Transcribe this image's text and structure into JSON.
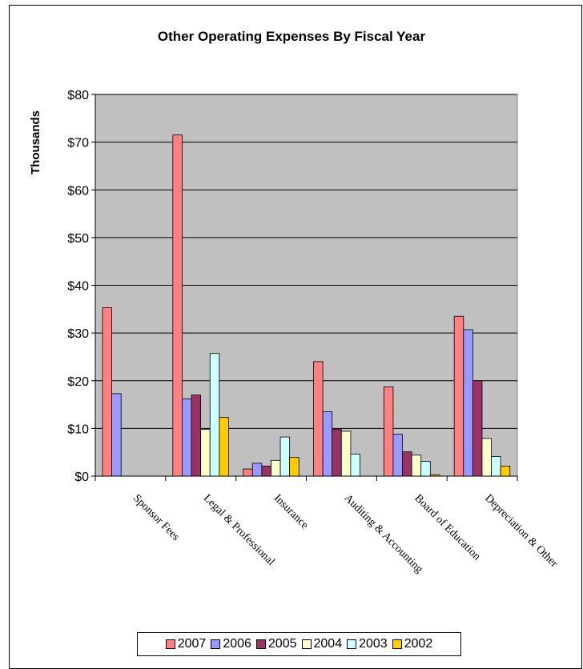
{
  "chart_data": {
    "type": "bar",
    "title": "Other Operating Expenses By Fiscal Year",
    "ylabel": "Thousands",
    "xlabel": "",
    "ylim": [
      0,
      80
    ],
    "yticks": [
      0,
      10,
      20,
      30,
      40,
      50,
      60,
      70,
      80
    ],
    "ytick_labels": [
      "$0",
      "$10",
      "$20",
      "$30",
      "$40",
      "$50",
      "$60",
      "$70",
      "$80"
    ],
    "grid": true,
    "legend_position": "bottom",
    "plot_background": "#c0c0c0",
    "categories": [
      "Sponsor Fees",
      "Legal & Professional",
      "Insurance",
      "Auditing & Accounting",
      "Board of Education",
      "Depreciation & Other"
    ],
    "series": [
      {
        "name": "2007",
        "color": "#ff8080",
        "values": [
          35.3,
          71.5,
          1.5,
          24.0,
          18.7,
          33.5
        ]
      },
      {
        "name": "2006",
        "color": "#9999ff",
        "values": [
          17.3,
          16.2,
          2.7,
          13.5,
          8.8,
          30.7
        ]
      },
      {
        "name": "2005",
        "color": "#993366",
        "values": [
          0,
          17.0,
          2.1,
          9.8,
          5.1,
          20.0
        ]
      },
      {
        "name": "2004",
        "color": "#ffffcc",
        "values": [
          0,
          9.8,
          3.3,
          9.4,
          4.4,
          7.9
        ]
      },
      {
        "name": "2003",
        "color": "#ccffff",
        "values": [
          0,
          25.7,
          8.2,
          4.6,
          3.1,
          4.1
        ]
      },
      {
        "name": "2002",
        "color": "#ffcc00",
        "values": [
          0,
          12.3,
          3.9,
          0,
          0.3,
          2.1
        ]
      }
    ]
  }
}
